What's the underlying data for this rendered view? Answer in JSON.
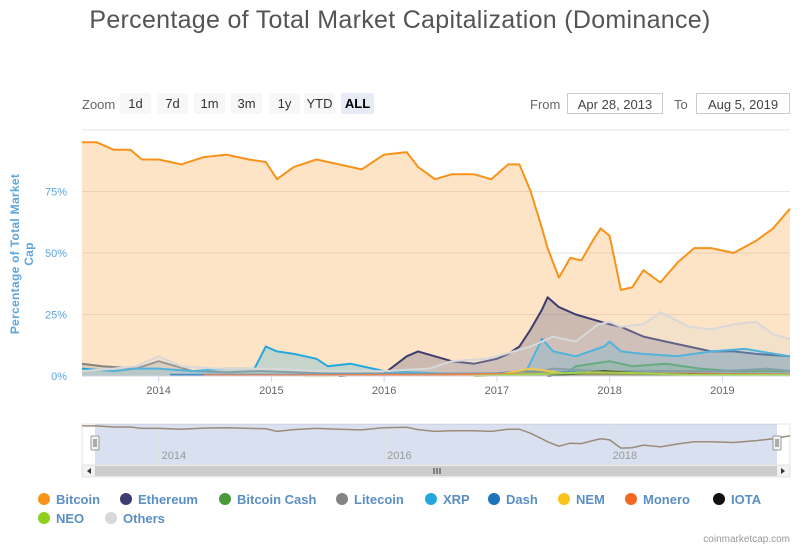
{
  "chart_data": {
    "type": "area",
    "title": "Percentage of Total Market Capitalization (Dominance)",
    "ylabel": "Percentage of Total Market Cap",
    "ylim": [
      0,
      100
    ],
    "y_ticks": [
      "0%",
      "25%",
      "50%",
      "75%"
    ],
    "y_tick_values": [
      0,
      25,
      50,
      75
    ],
    "x_ticks": [
      "2014",
      "2015",
      "2016",
      "2017",
      "2018",
      "2019"
    ],
    "xlim": [
      2013.32,
      2019.6
    ],
    "grid": true,
    "legend_position": "bottom",
    "series": [
      {
        "name": "Bitcoin",
        "color": "#f7931a",
        "x": [
          2013.32,
          2013.45,
          2013.6,
          2013.75,
          2013.85,
          2014.0,
          2014.2,
          2014.4,
          2014.6,
          2014.8,
          2014.95,
          2015.05,
          2015.2,
          2015.4,
          2015.6,
          2015.8,
          2016.0,
          2016.2,
          2016.3,
          2016.45,
          2016.6,
          2016.8,
          2016.95,
          2017.1,
          2017.2,
          2017.3,
          2017.4,
          2017.45,
          2017.55,
          2017.65,
          2017.75,
          2017.85,
          2017.92,
          2018.0,
          2018.1,
          2018.2,
          2018.3,
          2018.45,
          2018.6,
          2018.75,
          2018.9,
          2019.1,
          2019.3,
          2019.45,
          2019.6
        ],
        "values": [
          95,
          95,
          92,
          92,
          88,
          88,
          86,
          89,
          90,
          88,
          87,
          80,
          85,
          88,
          86,
          84,
          90,
          91,
          85,
          80,
          82,
          82,
          80,
          86,
          86,
          75,
          60,
          52,
          40,
          48,
          47,
          55,
          60,
          57,
          35,
          36,
          43,
          38,
          46,
          52,
          52,
          50,
          55,
          60,
          68
        ]
      },
      {
        "name": "Ethereum",
        "color": "#3c3c6e",
        "x": [
          2015.6,
          2015.8,
          2016.0,
          2016.2,
          2016.3,
          2016.45,
          2016.6,
          2016.8,
          2017.0,
          2017.1,
          2017.2,
          2017.3,
          2017.4,
          2017.45,
          2017.55,
          2017.7,
          2017.85,
          2018.0,
          2018.1,
          2018.3,
          2018.5,
          2018.7,
          2018.9,
          2019.1,
          2019.3,
          2019.6
        ],
        "values": [
          0,
          0.5,
          1,
          8,
          10,
          8,
          6,
          5,
          7,
          9,
          12,
          19,
          27,
          32,
          28,
          25,
          23,
          21,
          20,
          16,
          14,
          12,
          10,
          10,
          9,
          8
        ]
      },
      {
        "name": "Bitcoin Cash",
        "color": "#4a9a3c",
        "x": [
          2017.58,
          2017.7,
          2017.85,
          2018.0,
          2018.2,
          2018.5,
          2018.8,
          2019.1,
          2019.6
        ],
        "values": [
          0,
          4,
          5,
          6,
          4,
          5,
          3,
          2,
          2
        ]
      },
      {
        "name": "Litecoin",
        "color": "#838383",
        "x": [
          2013.32,
          2013.5,
          2013.8,
          2014.0,
          2014.3,
          2014.6,
          2014.9,
          2015.2,
          2015.5,
          2015.8,
          2016.0,
          2016.5,
          2017.0,
          2017.3,
          2017.5,
          2017.9,
          2018.2,
          2018.6,
          2019.0,
          2019.4,
          2019.6
        ],
        "values": [
          5,
          4,
          3,
          6,
          2,
          1.5,
          2,
          1.5,
          1,
          1,
          1,
          1,
          1,
          1,
          3,
          2,
          2,
          2,
          2,
          3,
          2
        ]
      },
      {
        "name": "XRP",
        "color": "#25a7dd",
        "x": [
          2013.32,
          2013.6,
          2013.8,
          2014.0,
          2014.3,
          2014.6,
          2014.85,
          2014.95,
          2015.05,
          2015.2,
          2015.4,
          2015.5,
          2015.7,
          2015.9,
          2016.0,
          2016.5,
          2017.0,
          2017.25,
          2017.4,
          2017.5,
          2017.7,
          2017.95,
          2018.0,
          2018.1,
          2018.3,
          2018.6,
          2018.9,
          2019.2,
          2019.6
        ],
        "values": [
          3,
          2,
          3,
          3,
          2,
          3,
          3,
          12,
          10,
          9,
          7,
          4,
          5,
          3,
          2,
          1,
          1,
          1,
          15,
          10,
          8,
          12,
          14,
          10,
          9,
          8,
          10,
          11,
          8
        ]
      },
      {
        "name": "Dash",
        "color": "#1b74ba",
        "x": [
          2014.1,
          2015.0,
          2016.0,
          2017.0,
          2017.2,
          2017.5,
          2017.9,
          2018.3,
          2019.0,
          2019.6
        ],
        "values": [
          0.5,
          0.5,
          0.5,
          1,
          2,
          1.5,
          1.5,
          1,
          0.8,
          0.6
        ]
      },
      {
        "name": "NEM",
        "color": "#f9c31c",
        "x": [
          2015.3,
          2016.0,
          2017.0,
          2017.3,
          2017.6,
          2018.0,
          2018.3,
          2019.0,
          2019.6
        ],
        "values": [
          0.1,
          0.3,
          0.5,
          3,
          1,
          2,
          1,
          0.3,
          0.2
        ]
      },
      {
        "name": "Monero",
        "color": "#f26822",
        "x": [
          2014.4,
          2015.0,
          2016.0,
          2016.9,
          2017.5,
          2018.0,
          2018.5,
          2019.0,
          2019.6
        ],
        "values": [
          0.3,
          0.3,
          0.4,
          0.8,
          1,
          1.2,
          1,
          0.8,
          0.6
        ]
      },
      {
        "name": "IOTA",
        "color": "#111111",
        "x": [
          2017.45,
          2017.7,
          2017.95,
          2018.3,
          2018.8,
          2019.6
        ],
        "values": [
          0,
          1,
          2,
          1,
          0.5,
          0.4
        ]
      },
      {
        "name": "NEO",
        "color": "#8fd01e",
        "x": [
          2016.8,
          2017.5,
          2017.9,
          2018.2,
          2018.7,
          2019.6
        ],
        "values": [
          0,
          1,
          1.5,
          1.2,
          0.5,
          0.4
        ]
      },
      {
        "name": "Others",
        "color": "#d8d8d8",
        "x": [
          2013.32,
          2013.6,
          2013.8,
          2014.0,
          2014.2,
          2014.5,
          2014.8,
          2015.0,
          2015.4,
          2015.8,
          2016.0,
          2016.4,
          2016.6,
          2016.9,
          2017.0,
          2017.3,
          2017.5,
          2017.7,
          2017.9,
          2018.0,
          2018.1,
          2018.3,
          2018.45,
          2018.7,
          2018.9,
          2019.1,
          2019.3,
          2019.45,
          2019.6
        ],
        "values": [
          2,
          3,
          4,
          8,
          4,
          3,
          3,
          3,
          2,
          2,
          2,
          3,
          6,
          7,
          8,
          12,
          16,
          14,
          21,
          22,
          20,
          21,
          26,
          20,
          19,
          21,
          22,
          17,
          15
        ]
      }
    ]
  },
  "controls": {
    "zoom_label": "Zoom",
    "zoom_buttons": [
      "1d",
      "7d",
      "1m",
      "3m",
      "1y",
      "YTD",
      "ALL"
    ],
    "from_label": "From",
    "from_value": "Apr 28, 2013",
    "to_label": "To",
    "to_value": "Aug 5, 2019"
  },
  "navigator": {
    "x_ticks": [
      "2014",
      "2016",
      "2018"
    ],
    "x_tick_values": [
      2014,
      2016,
      2018
    ],
    "range": [
      2013.32,
      2019.6
    ]
  },
  "credit": "coinmarketcap.com"
}
